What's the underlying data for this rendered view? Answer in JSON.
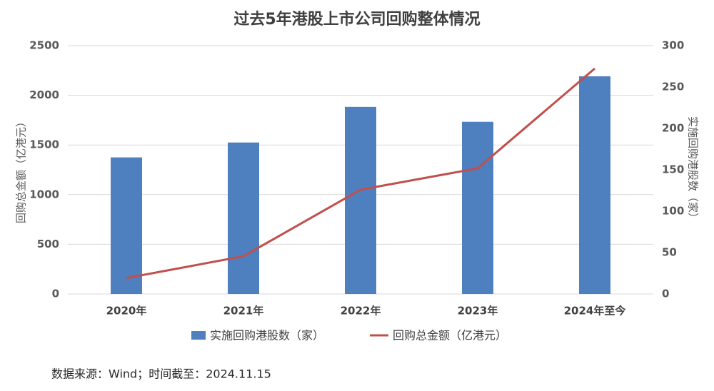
{
  "chart_data": {
    "type": "bar-line",
    "title": "过去5年港股上市公司回购整体情况",
    "categories": [
      "2020年",
      "2021年",
      "2022年",
      "2023年",
      "2024年至今"
    ],
    "series": [
      {
        "name": "实施回购港股数（家）",
        "type": "bar",
        "axis": "y2",
        "color": "#4e7fbf",
        "values": [
          165,
          183,
          226,
          208,
          263
        ]
      },
      {
        "name": "回购总金额（亿港元）",
        "type": "line",
        "axis": "y",
        "color": "#c0504d",
        "values": [
          160,
          380,
          1050,
          1265,
          2270
        ]
      }
    ],
    "y_label": "回购总金额（亿港元）",
    "y2_label": "实施回购港股数（家）",
    "ylim": [
      0,
      2500
    ],
    "yticks": [
      0,
      500,
      1000,
      1500,
      2000,
      2500
    ],
    "y2lim": [
      0,
      300
    ],
    "y2ticks": [
      0,
      50,
      100,
      150,
      200,
      250,
      300
    ],
    "grid": true,
    "legend": "bottom",
    "note": "数据来源：Wind；时间截至：2024.11.15"
  }
}
